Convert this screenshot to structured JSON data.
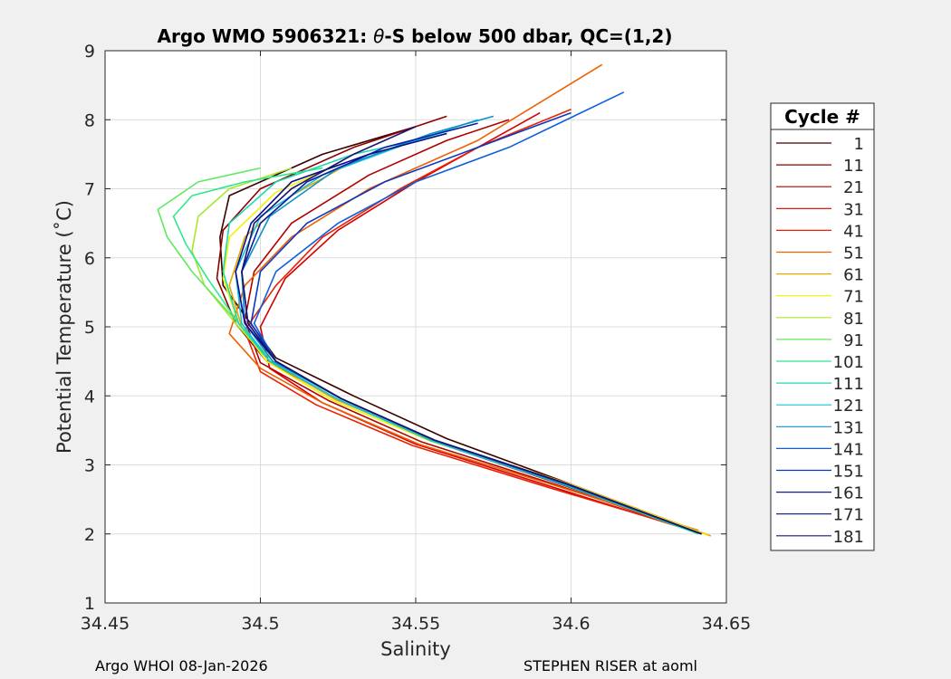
{
  "chart_data": {
    "type": "line",
    "title_prefix": "Argo WMO 5906321: ",
    "title_theta": "θ",
    "title_suffix": "-S below 500 dbar,  QC=(1,2)",
    "xlabel": "Salinity",
    "ylabel": "Potential Temperature (˚C)",
    "xlim": [
      34.45,
      34.65
    ],
    "ylim": [
      1,
      9
    ],
    "xticks": [
      "34.45",
      "34.5",
      "34.55",
      "34.6",
      "34.65"
    ],
    "xtick_values": [
      34.45,
      34.5,
      34.55,
      34.6,
      34.65
    ],
    "yticks": [
      "1",
      "2",
      "3",
      "4",
      "5",
      "6",
      "7",
      "8",
      "9"
    ],
    "ytick_values": [
      1,
      2,
      3,
      4,
      5,
      6,
      7,
      8,
      9
    ],
    "grid": true,
    "legend_title": "Cycle #",
    "legend_position": "right",
    "series": [
      {
        "name": "1",
        "color": "#3a0000",
        "points": [
          [
            34.643,
            2.0
          ],
          [
            34.6,
            2.72
          ],
          [
            34.56,
            3.38
          ],
          [
            34.53,
            4.0
          ],
          [
            34.505,
            4.55
          ],
          [
            34.496,
            5.1
          ],
          [
            34.488,
            5.6
          ],
          [
            34.487,
            6.3
          ],
          [
            34.49,
            6.9
          ],
          [
            34.52,
            7.5
          ],
          [
            34.55,
            7.9
          ]
        ]
      },
      {
        "name": "11",
        "color": "#8b0000",
        "points": [
          [
            34.642,
            2.0
          ],
          [
            34.598,
            2.7
          ],
          [
            34.555,
            3.35
          ],
          [
            34.525,
            3.95
          ],
          [
            34.502,
            4.5
          ],
          [
            34.492,
            5.05
          ],
          [
            34.486,
            5.7
          ],
          [
            34.488,
            6.4
          ],
          [
            34.5,
            7.0
          ],
          [
            34.53,
            7.6
          ],
          [
            34.56,
            8.05
          ]
        ]
      },
      {
        "name": "21",
        "color": "#b00000",
        "points": [
          [
            34.641,
            2.02
          ],
          [
            34.596,
            2.7
          ],
          [
            34.552,
            3.33
          ],
          [
            34.522,
            3.93
          ],
          [
            34.5,
            4.48
          ],
          [
            34.495,
            5.1
          ],
          [
            34.498,
            5.8
          ],
          [
            34.51,
            6.5
          ],
          [
            34.535,
            7.2
          ],
          [
            34.56,
            7.7
          ],
          [
            34.58,
            8.0
          ]
        ]
      },
      {
        "name": "31",
        "color": "#d40000",
        "points": [
          [
            34.64,
            2.03
          ],
          [
            34.594,
            2.68
          ],
          [
            34.55,
            3.3
          ],
          [
            34.52,
            3.9
          ],
          [
            34.503,
            4.4
          ],
          [
            34.5,
            5.0
          ],
          [
            34.508,
            5.7
          ],
          [
            34.525,
            6.4
          ],
          [
            34.55,
            7.1
          ],
          [
            34.57,
            7.6
          ],
          [
            34.59,
            8.1
          ]
        ]
      },
      {
        "name": "41",
        "color": "#ec2000",
        "points": [
          [
            34.64,
            2.04
          ],
          [
            34.593,
            2.67
          ],
          [
            34.549,
            3.28
          ],
          [
            34.518,
            3.87
          ],
          [
            34.5,
            4.35
          ],
          [
            34.495,
            4.95
          ],
          [
            34.505,
            5.6
          ],
          [
            34.52,
            6.3
          ],
          [
            34.545,
            7.0
          ],
          [
            34.57,
            7.6
          ],
          [
            34.6,
            8.15
          ]
        ]
      },
      {
        "name": "51",
        "color": "#f06000",
        "points": [
          [
            34.641,
            2.05
          ],
          [
            34.595,
            2.7
          ],
          [
            34.551,
            3.3
          ],
          [
            34.52,
            3.9
          ],
          [
            34.5,
            4.4
          ],
          [
            34.49,
            4.9
          ],
          [
            34.495,
            5.6
          ],
          [
            34.51,
            6.3
          ],
          [
            34.535,
            7.0
          ],
          [
            34.57,
            7.7
          ],
          [
            34.61,
            8.8
          ]
        ]
      },
      {
        "name": "61",
        "color": "#e6a800",
        "points": [
          [
            34.645,
            1.97
          ],
          [
            34.6,
            2.72
          ],
          [
            34.556,
            3.35
          ],
          [
            34.524,
            3.95
          ],
          [
            34.503,
            4.5
          ],
          [
            34.494,
            5.0
          ],
          [
            34.49,
            5.6
          ],
          [
            34.495,
            6.3
          ],
          [
            34.51,
            6.9
          ],
          [
            34.53,
            7.4
          ]
        ]
      },
      {
        "name": "71",
        "color": "#f5f000",
        "points": [
          [
            34.644,
            1.98
          ],
          [
            34.6,
            2.71
          ],
          [
            34.555,
            3.34
          ],
          [
            34.523,
            3.94
          ],
          [
            34.502,
            4.5
          ],
          [
            34.493,
            5.05
          ],
          [
            34.488,
            5.7
          ],
          [
            34.49,
            6.3
          ],
          [
            34.505,
            6.95
          ],
          [
            34.525,
            7.35
          ]
        ]
      },
      {
        "name": "81",
        "color": "#a8e830",
        "points": [
          [
            34.642,
            2.0
          ],
          [
            34.599,
            2.71
          ],
          [
            34.555,
            3.35
          ],
          [
            34.525,
            3.95
          ],
          [
            34.503,
            4.5
          ],
          [
            34.492,
            5.05
          ],
          [
            34.482,
            5.6
          ],
          [
            34.478,
            6.1
          ],
          [
            34.48,
            6.6
          ],
          [
            34.49,
            7.0
          ],
          [
            34.51,
            7.3
          ]
        ]
      },
      {
        "name": "91",
        "color": "#60e860",
        "points": [
          [
            34.642,
            2.0
          ],
          [
            34.599,
            2.72
          ],
          [
            34.556,
            3.36
          ],
          [
            34.526,
            3.96
          ],
          [
            34.504,
            4.5
          ],
          [
            34.493,
            5.05
          ],
          [
            34.478,
            5.8
          ],
          [
            34.47,
            6.3
          ],
          [
            34.467,
            6.7
          ],
          [
            34.48,
            7.1
          ],
          [
            34.5,
            7.3
          ]
        ]
      },
      {
        "name": "101",
        "color": "#30e88a",
        "points": [
          [
            34.641,
            2.0
          ],
          [
            34.598,
            2.71
          ],
          [
            34.555,
            3.35
          ],
          [
            34.525,
            3.95
          ],
          [
            34.503,
            4.5
          ],
          [
            34.493,
            5.05
          ],
          [
            34.483,
            5.7
          ],
          [
            34.476,
            6.2
          ],
          [
            34.472,
            6.6
          ],
          [
            34.478,
            6.9
          ],
          [
            34.495,
            7.1
          ],
          [
            34.52,
            7.3
          ]
        ]
      },
      {
        "name": "111",
        "color": "#20d8b0",
        "points": [
          [
            34.641,
            2.01
          ],
          [
            34.598,
            2.71
          ],
          [
            34.555,
            3.35
          ],
          [
            34.525,
            3.95
          ],
          [
            34.503,
            4.5
          ],
          [
            34.493,
            5.05
          ],
          [
            34.488,
            5.8
          ],
          [
            34.49,
            6.5
          ],
          [
            34.505,
            7.1
          ],
          [
            34.53,
            7.5
          ],
          [
            34.56,
            7.8
          ]
        ]
      },
      {
        "name": "121",
        "color": "#18c0d8",
        "points": [
          [
            34.642,
            2.0
          ],
          [
            34.598,
            2.71
          ],
          [
            34.555,
            3.35
          ],
          [
            34.525,
            3.95
          ],
          [
            34.503,
            4.5
          ],
          [
            34.494,
            5.05
          ],
          [
            34.492,
            5.8
          ],
          [
            34.5,
            6.6
          ],
          [
            34.52,
            7.2
          ],
          [
            34.55,
            7.7
          ],
          [
            34.57,
            8.0
          ]
        ]
      },
      {
        "name": "131",
        "color": "#1090c8",
        "points": [
          [
            34.642,
            2.0
          ],
          [
            34.598,
            2.72
          ],
          [
            34.556,
            3.36
          ],
          [
            34.526,
            3.96
          ],
          [
            34.504,
            4.5
          ],
          [
            34.495,
            5.05
          ],
          [
            34.494,
            5.8
          ],
          [
            34.503,
            6.6
          ],
          [
            34.525,
            7.3
          ],
          [
            34.555,
            7.8
          ],
          [
            34.575,
            8.05
          ]
        ]
      },
      {
        "name": "141",
        "color": "#0d60d8",
        "points": [
          [
            34.642,
            2.0
          ],
          [
            34.599,
            2.72
          ],
          [
            34.556,
            3.36
          ],
          [
            34.526,
            3.96
          ],
          [
            34.505,
            4.5
          ],
          [
            34.498,
            5.05
          ],
          [
            34.505,
            5.8
          ],
          [
            34.525,
            6.5
          ],
          [
            34.55,
            7.1
          ],
          [
            34.58,
            7.6
          ],
          [
            34.617,
            8.4
          ]
        ]
      },
      {
        "name": "151",
        "color": "#0838c0",
        "points": [
          [
            34.642,
            2.0
          ],
          [
            34.599,
            2.72
          ],
          [
            34.556,
            3.36
          ],
          [
            34.526,
            3.96
          ],
          [
            34.505,
            4.5
          ],
          [
            34.497,
            5.05
          ],
          [
            34.5,
            5.8
          ],
          [
            34.515,
            6.5
          ],
          [
            34.54,
            7.1
          ],
          [
            34.57,
            7.6
          ],
          [
            34.6,
            8.1
          ]
        ]
      },
      {
        "name": "161",
        "color": "#0a1ea0",
        "points": [
          [
            34.642,
            2.0
          ],
          [
            34.599,
            2.72
          ],
          [
            34.556,
            3.36
          ],
          [
            34.526,
            3.96
          ],
          [
            34.505,
            4.5
          ],
          [
            34.496,
            5.05
          ],
          [
            34.494,
            5.8
          ],
          [
            34.5,
            6.5
          ],
          [
            34.515,
            7.1
          ],
          [
            34.54,
            7.6
          ],
          [
            34.57,
            7.95
          ]
        ]
      },
      {
        "name": "171",
        "color": "#0a0a8c",
        "points": [
          [
            34.642,
            2.0
          ],
          [
            34.599,
            2.72
          ],
          [
            34.556,
            3.36
          ],
          [
            34.526,
            3.96
          ],
          [
            34.505,
            4.5
          ],
          [
            34.495,
            5.05
          ],
          [
            34.492,
            5.8
          ],
          [
            34.497,
            6.5
          ],
          [
            34.51,
            7.1
          ],
          [
            34.535,
            7.5
          ],
          [
            34.56,
            7.8
          ]
        ]
      },
      {
        "name": "181",
        "color": "#1a1670",
        "points": [
          [
            34.642,
            2.0
          ],
          [
            34.599,
            2.72
          ],
          [
            34.556,
            3.36
          ],
          [
            34.526,
            3.96
          ],
          [
            34.505,
            4.5
          ],
          [
            34.496,
            5.05
          ],
          [
            34.494,
            5.8
          ],
          [
            34.498,
            6.5
          ],
          [
            34.51,
            7.0
          ],
          [
            34.53,
            7.5
          ],
          [
            34.55,
            7.9
          ]
        ]
      }
    ]
  },
  "footer": {
    "left": "Argo WHOI 08-Jan-2026",
    "right": "STEPHEN RISER at aoml"
  }
}
